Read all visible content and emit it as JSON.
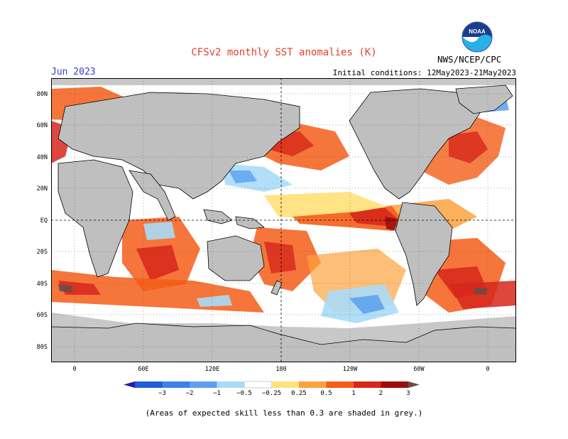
{
  "title": "CFSv2 monthly SST anomalies (K)",
  "month_label": "Jun 2023",
  "initial_conditions": "Initial conditions: 12May2023-21May2023",
  "agency": "NWS/NCEP/CPC",
  "logo_text": "NOAA",
  "lat_labels": [
    "80N",
    "60N",
    "40N",
    "20N",
    "EQ",
    "20S",
    "40S",
    "60S",
    "80S"
  ],
  "lon_labels": [
    "0",
    "60E",
    "120E",
    "180",
    "120W",
    "60W",
    "0"
  ],
  "colorbar": {
    "labels": [
      "−3",
      "−2",
      "−1",
      "−0.5",
      "−0.25",
      "0.25",
      "0.5",
      "1",
      "2",
      "3"
    ],
    "colors": [
      "#2a1aa8",
      "#1f5fd6",
      "#3c82e6",
      "#5aa0f0",
      "#a8dcf7",
      "#ffffff",
      "#ffe27e",
      "#fca23d",
      "#f55d18",
      "#d7271c",
      "#9d0d0d",
      "#6b4a45"
    ]
  },
  "colors": {
    "land": "#bfbfbf",
    "low_skill_grey": "#c8c8c8",
    "title": "#e8402a",
    "month": "#3a3acc"
  },
  "note": "(Areas of expected skill less than 0.3 are shaded in grey.)"
}
